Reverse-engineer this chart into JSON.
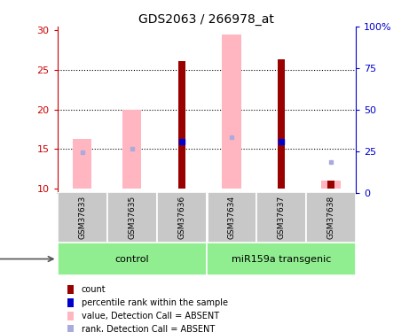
{
  "title": "GDS2063 / 266978_at",
  "samples": [
    "GSM37633",
    "GSM37635",
    "GSM37636",
    "GSM37634",
    "GSM37637",
    "GSM37638"
  ],
  "ylim_left": [
    9.5,
    30.5
  ],
  "ylim_right": [
    0,
    100
  ],
  "yticks_left": [
    10,
    15,
    20,
    25,
    30
  ],
  "yticks_right": [
    0,
    25,
    50,
    75,
    100
  ],
  "ytick_labels_right": [
    "0",
    "25",
    "50",
    "75",
    "100%"
  ],
  "red_bars": {
    "heights": [
      0,
      0,
      16.1,
      0,
      16.3,
      1.0
    ],
    "tops": [
      0,
      0,
      26.1,
      0,
      26.3,
      11.0
    ]
  },
  "pink_bars": {
    "tops": [
      16.3,
      20.0,
      0,
      29.5,
      0,
      11.0
    ],
    "bottoms": [
      10.0,
      10.0,
      0,
      10.0,
      0,
      10.0
    ]
  },
  "blue_squares": {
    "x": [
      2,
      4
    ],
    "y": [
      15.9,
      15.9
    ]
  },
  "light_blue_squares": {
    "x": [
      0,
      1,
      3,
      5
    ],
    "y": [
      14.6,
      15.0,
      16.5,
      13.4
    ]
  },
  "control_indices": [
    0,
    1,
    2
  ],
  "transgenic_indices": [
    3,
    4,
    5
  ],
  "sample_box_color": "#C8C8C8",
  "group_color": "#90EE90",
  "left_axis_color": "#CC0000",
  "right_axis_color": "#0000CC",
  "red_bar_color": "#990000",
  "pink_bar_color": "#FFB6C1",
  "blue_sq_color": "#0000CC",
  "light_blue_sq_color": "#AAAADD",
  "legend_items": [
    {
      "label": "count",
      "color": "#990000"
    },
    {
      "label": "percentile rank within the sample",
      "color": "#0000CC"
    },
    {
      "label": "value, Detection Call = ABSENT",
      "color": "#FFB6C1"
    },
    {
      "label": "rank, Detection Call = ABSENT",
      "color": "#AAAADD"
    }
  ]
}
